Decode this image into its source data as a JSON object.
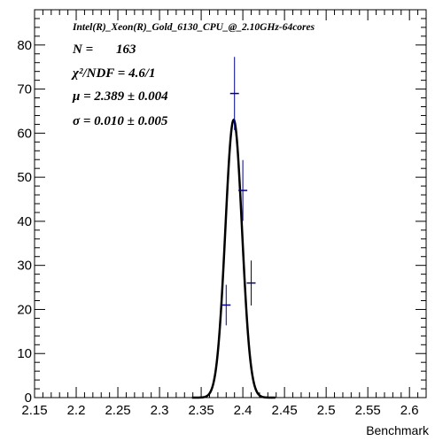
{
  "chart_data": {
    "type": "scatter",
    "title": "Intel(R)_Xeon(R)_Gold_6130_CPU_@_2.10GHz-64cores",
    "xlabel": "Benchmark",
    "ylabel": "",
    "xlim": [
      2.15,
      2.62
    ],
    "ylim": [
      0,
      88
    ],
    "x_ticks": [
      "2.15",
      "2.2",
      "2.25",
      "2.3",
      "2.35",
      "2.4",
      "2.45",
      "2.5",
      "2.55",
      "2.6"
    ],
    "y_ticks": [
      "0",
      "10",
      "20",
      "30",
      "40",
      "50",
      "60",
      "70",
      "80"
    ],
    "series": [
      {
        "kind": "histogram-points",
        "x": [
          2.38,
          2.39,
          2.4,
          2.41
        ],
        "y": [
          21,
          69,
          47,
          26
        ],
        "yerr": [
          4.6,
          8.3,
          6.9,
          5.1
        ]
      },
      {
        "kind": "gaussian-fit",
        "mean": 2.389,
        "sigma": 0.01,
        "peak": 63
      }
    ],
    "stats": {
      "n_label": "N =",
      "n_value": "163",
      "chi2_label": "χ²/NDF = 4.6/1",
      "mu_label": "μ = 2.389 ± 0.004",
      "sigma_label": "σ = 0.010 ± 0.005"
    },
    "colors": {
      "points": "#00008b",
      "fit": "#000000",
      "axis": "#000000"
    }
  }
}
